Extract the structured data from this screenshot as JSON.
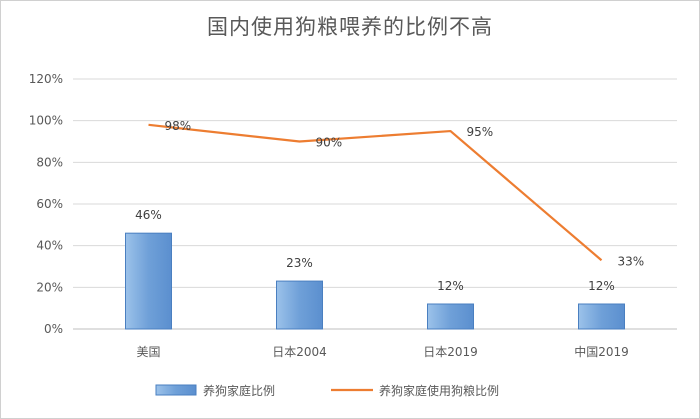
{
  "chart_data": {
    "type": "bar",
    "title": "国内使用狗粮喂养的比例不高",
    "categories": [
      "美国",
      "日本2004",
      "日本2019",
      "中国2019"
    ],
    "ylim": [
      0,
      1.2
    ],
    "yticks": [
      0,
      0.2,
      0.4,
      0.6,
      0.8,
      1.0,
      1.2
    ],
    "ytick_labels": [
      "0%",
      "20%",
      "40%",
      "60%",
      "80%",
      "100%",
      "120%"
    ],
    "grid": true,
    "legend_position": "bottom",
    "series": [
      {
        "name": "养狗家庭比例",
        "type": "bar",
        "color": "#6fa0d8",
        "values": [
          0.46,
          0.23,
          0.12,
          0.12
        ],
        "labels": [
          "46%",
          "23%",
          "12%",
          "12%"
        ]
      },
      {
        "name": "养狗家庭使用狗粮比例",
        "type": "line",
        "color": "#ed7d31",
        "values": [
          0.98,
          0.9,
          0.95,
          0.33
        ],
        "labels": [
          "98%",
          "90%",
          "95%",
          "33%"
        ]
      }
    ]
  }
}
